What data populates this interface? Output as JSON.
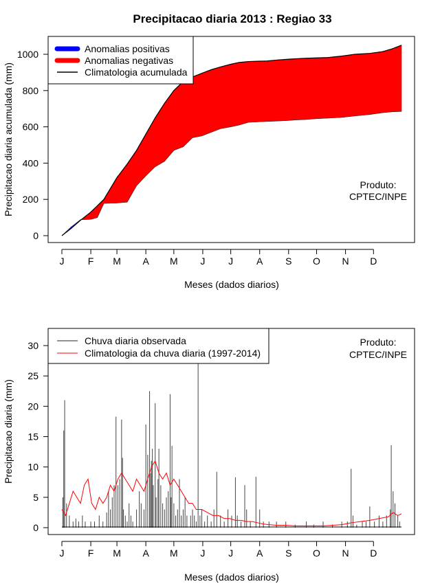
{
  "title": "Precipitacao diaria 2013 : Regiao 33",
  "chart_data": [
    {
      "type": "area",
      "xlabel": "Meses (dados diarios)",
      "ylabel": "Precipitacao diaria acumulada (mm)",
      "ylim": [
        0,
        1100
      ],
      "yticks": [
        "0",
        "200",
        "400",
        "600",
        "800",
        "1000"
      ],
      "months": [
        "J",
        "F",
        "M",
        "A",
        "M",
        "J",
        "J",
        "A",
        "S",
        "O",
        "N",
        "D"
      ],
      "credit_line1": "Produto:",
      "credit_line2": "CPTEC/INPE",
      "legend": [
        {
          "label": "Anomalias positivas",
          "color": "#0000ff"
        },
        {
          "label": "Anomalias negativas",
          "color": "#ff0000"
        },
        {
          "label": "Climatologia acumulada",
          "color": "#000000"
        }
      ],
      "x_day": [
        0,
        10,
        20,
        31,
        38,
        45,
        59,
        70,
        80,
        90,
        100,
        110,
        120,
        130,
        140,
        150,
        160,
        170,
        181,
        190,
        200,
        212,
        220,
        230,
        243,
        250,
        260,
        273,
        285,
        300,
        314,
        330,
        344,
        354,
        364
      ],
      "climatology_cum": [
        0,
        40,
        85,
        130,
        165,
        200,
        320,
        395,
        470,
        560,
        650,
        730,
        800,
        850,
        875,
        895,
        915,
        930,
        945,
        955,
        960,
        962,
        963,
        968,
        973,
        975,
        978,
        980,
        982,
        990,
        1000,
        1005,
        1015,
        1030,
        1050
      ],
      "observed_cum": [
        0,
        48,
        88,
        90,
        100,
        178,
        180,
        185,
        275,
        330,
        380,
        410,
        470,
        490,
        540,
        550,
        570,
        590,
        600,
        610,
        625,
        628,
        630,
        632,
        635,
        638,
        640,
        645,
        648,
        652,
        660,
        668,
        678,
        683,
        685
      ]
    },
    {
      "type": "bar",
      "xlabel": "Meses (dados diarios)",
      "ylabel": "Precipitacao diaria (mm)",
      "ylim": [
        0,
        32
      ],
      "yticks": [
        "0",
        "5",
        "10",
        "15",
        "20",
        "25",
        "30"
      ],
      "months": [
        "J",
        "F",
        "M",
        "A",
        "M",
        "J",
        "J",
        "A",
        "S",
        "O",
        "N",
        "D"
      ],
      "credit_line1": "Produto:",
      "credit_line2": "CPTEC/INPE",
      "legend": [
        {
          "label": "Chuva diaria observada",
          "color": "#555555"
        },
        {
          "label": "Climatologia da chuva diaria (1997-2014)",
          "color": "#ff0000"
        }
      ],
      "observed_spikes": [
        [
          1,
          5
        ],
        [
          2,
          16
        ],
        [
          3,
          21
        ],
        [
          5,
          4
        ],
        [
          8,
          2
        ],
        [
          12,
          1
        ],
        [
          15,
          1.5
        ],
        [
          18,
          1
        ],
        [
          22,
          2
        ],
        [
          25,
          1
        ],
        [
          31,
          1
        ],
        [
          35,
          1
        ],
        [
          40,
          2
        ],
        [
          44,
          1
        ],
        [
          48,
          2.5
        ],
        [
          50,
          6
        ],
        [
          52,
          3
        ],
        [
          54,
          5
        ],
        [
          56,
          7
        ],
        [
          58,
          18.3
        ],
        [
          60,
          7
        ],
        [
          62,
          8
        ],
        [
          64,
          17.8
        ],
        [
          65,
          11.5
        ],
        [
          66,
          3
        ],
        [
          68,
          2
        ],
        [
          70,
          1
        ],
        [
          72,
          4
        ],
        [
          74,
          2
        ],
        [
          76,
          1
        ],
        [
          80,
          3
        ],
        [
          83,
          6
        ],
        [
          85,
          4
        ],
        [
          88,
          3
        ],
        [
          90,
          17
        ],
        [
          92,
          12
        ],
        [
          94,
          22.5
        ],
        [
          95,
          9
        ],
        [
          96,
          11
        ],
        [
          97,
          13
        ],
        [
          98,
          7
        ],
        [
          100,
          20.5
        ],
        [
          101,
          5
        ],
        [
          103,
          8
        ],
        [
          104,
          13
        ],
        [
          106,
          7
        ],
        [
          108,
          4
        ],
        [
          110,
          3
        ],
        [
          112,
          5
        ],
        [
          114,
          6
        ],
        [
          116,
          22
        ],
        [
          117,
          5
        ],
        [
          118,
          13.5
        ],
        [
          120,
          4
        ],
        [
          122,
          2
        ],
        [
          124,
          3
        ],
        [
          126,
          8
        ],
        [
          128,
          2
        ],
        [
          130,
          3
        ],
        [
          132,
          5
        ],
        [
          134,
          2
        ],
        [
          138,
          2
        ],
        [
          140,
          3
        ],
        [
          142,
          2
        ],
        [
          144,
          1
        ],
        [
          146,
          27
        ],
        [
          148,
          2
        ],
        [
          150,
          3
        ],
        [
          153,
          1
        ],
        [
          156,
          2
        ],
        [
          160,
          1
        ],
        [
          163,
          3
        ],
        [
          166,
          9.2
        ],
        [
          170,
          2
        ],
        [
          174,
          1
        ],
        [
          178,
          3
        ],
        [
          182,
          2
        ],
        [
          186,
          8.3
        ],
        [
          188,
          2
        ],
        [
          192,
          1
        ],
        [
          196,
          7
        ],
        [
          198,
          3
        ],
        [
          202,
          1
        ],
        [
          208,
          8.4
        ],
        [
          212,
          3
        ],
        [
          216,
          1
        ],
        [
          222,
          1
        ],
        [
          230,
          1
        ],
        [
          240,
          1
        ],
        [
          250,
          0.5
        ],
        [
          262,
          1
        ],
        [
          270,
          0.5
        ],
        [
          280,
          1
        ],
        [
          290,
          0.5
        ],
        [
          300,
          1
        ],
        [
          306,
          1
        ],
        [
          310,
          9.7
        ],
        [
          312,
          2
        ],
        [
          316,
          0.5
        ],
        [
          322,
          1
        ],
        [
          326,
          1
        ],
        [
          330,
          3.5
        ],
        [
          335,
          1
        ],
        [
          340,
          2
        ],
        [
          344,
          1
        ],
        [
          348,
          2
        ],
        [
          352,
          3
        ],
        [
          353,
          13.6
        ],
        [
          355,
          6
        ],
        [
          357,
          4
        ],
        [
          360,
          2
        ],
        [
          362,
          1
        ]
      ],
      "clim_x": [
        0,
        4,
        8,
        12,
        16,
        20,
        24,
        28,
        32,
        36,
        40,
        44,
        48,
        52,
        56,
        60,
        64,
        68,
        72,
        76,
        80,
        84,
        88,
        92,
        96,
        100,
        104,
        108,
        112,
        116,
        120,
        124,
        128,
        132,
        136,
        140,
        144,
        150,
        156,
        162,
        168,
        174,
        180,
        186,
        192,
        198,
        204,
        210,
        216,
        222,
        230,
        240,
        250,
        260,
        270,
        280,
        290,
        300,
        310,
        320,
        330,
        340,
        350,
        355,
        360,
        364
      ],
      "clim_y": [
        3,
        2,
        4,
        6,
        5,
        4,
        7,
        8,
        4,
        3,
        5,
        4,
        5,
        7,
        6,
        8,
        9,
        8,
        7,
        6,
        8,
        7,
        6,
        8,
        10,
        11,
        9,
        8,
        9,
        7,
        8,
        7,
        6,
        5,
        4,
        4,
        3,
        3,
        2.5,
        2,
        2,
        1.5,
        1.5,
        1.2,
        1.2,
        1,
        1,
        0.8,
        0.6,
        0.5,
        0.4,
        0.4,
        0.3,
        0.3,
        0.3,
        0.3,
        0.4,
        0.5,
        0.8,
        1,
        1.2,
        1.5,
        1.8,
        2.5,
        2,
        2.3
      ]
    }
  ]
}
